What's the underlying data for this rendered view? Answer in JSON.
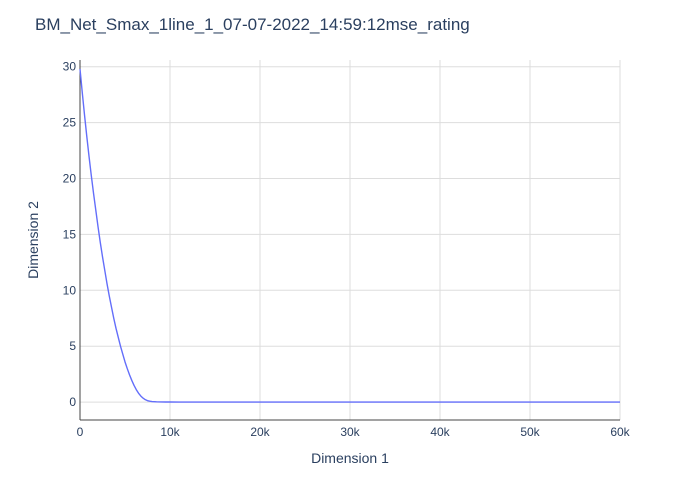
{
  "chart_data": {
    "type": "line",
    "title": "BM_Net_Smax_1line_1_07-07-2022_14:59:12mse_rating",
    "xlabel": "Dimension 1",
    "ylabel": "Dimension 2",
    "xlim": [
      0,
      60000
    ],
    "ylim": [
      -1.6,
      30.6
    ],
    "xticks": [
      0,
      10000,
      20000,
      30000,
      40000,
      50000,
      60000
    ],
    "xtick_labels": [
      "0",
      "10k",
      "20k",
      "30k",
      "40k",
      "50k",
      "60k"
    ],
    "yticks": [
      0,
      5,
      10,
      15,
      20,
      25,
      30
    ],
    "ytick_labels": [
      "0",
      "5",
      "10",
      "15",
      "20",
      "25",
      "30"
    ],
    "grid": true,
    "legend": "none",
    "series": [
      {
        "color": "#636efa",
        "x": [
          0,
          250,
          500,
          750,
          1000,
          1250,
          1500,
          1750,
          2000,
          2250,
          2500,
          2750,
          3000,
          3250,
          3500,
          3750,
          4000,
          4250,
          4500,
          4750,
          5000,
          5250,
          5500,
          5750,
          6000,
          6250,
          6500,
          6750,
          7000,
          7250,
          7500,
          7750,
          8000,
          8500,
          9000,
          9500,
          10000,
          11000,
          12000,
          14000,
          16000,
          20000,
          25000,
          30000,
          35000,
          40000,
          45000,
          50000,
          55000,
          60000
        ],
        "y": [
          29.8,
          27.7,
          25.7,
          23.8,
          22.0,
          20.3,
          18.7,
          17.2,
          15.7,
          14.3,
          13.0,
          11.8,
          10.6,
          9.5,
          8.5,
          7.5,
          6.6,
          5.8,
          5.0,
          4.3,
          3.6,
          3.0,
          2.45,
          1.95,
          1.5,
          1.12,
          0.8,
          0.55,
          0.36,
          0.22,
          0.13,
          0.08,
          0.05,
          0.03,
          0.02,
          0.01,
          0.01,
          0.005,
          0.0,
          0.0,
          0.0,
          0.0,
          0.0,
          0.0,
          0.0,
          0.0,
          0.0,
          0.0,
          0.0,
          0.0
        ]
      }
    ]
  }
}
